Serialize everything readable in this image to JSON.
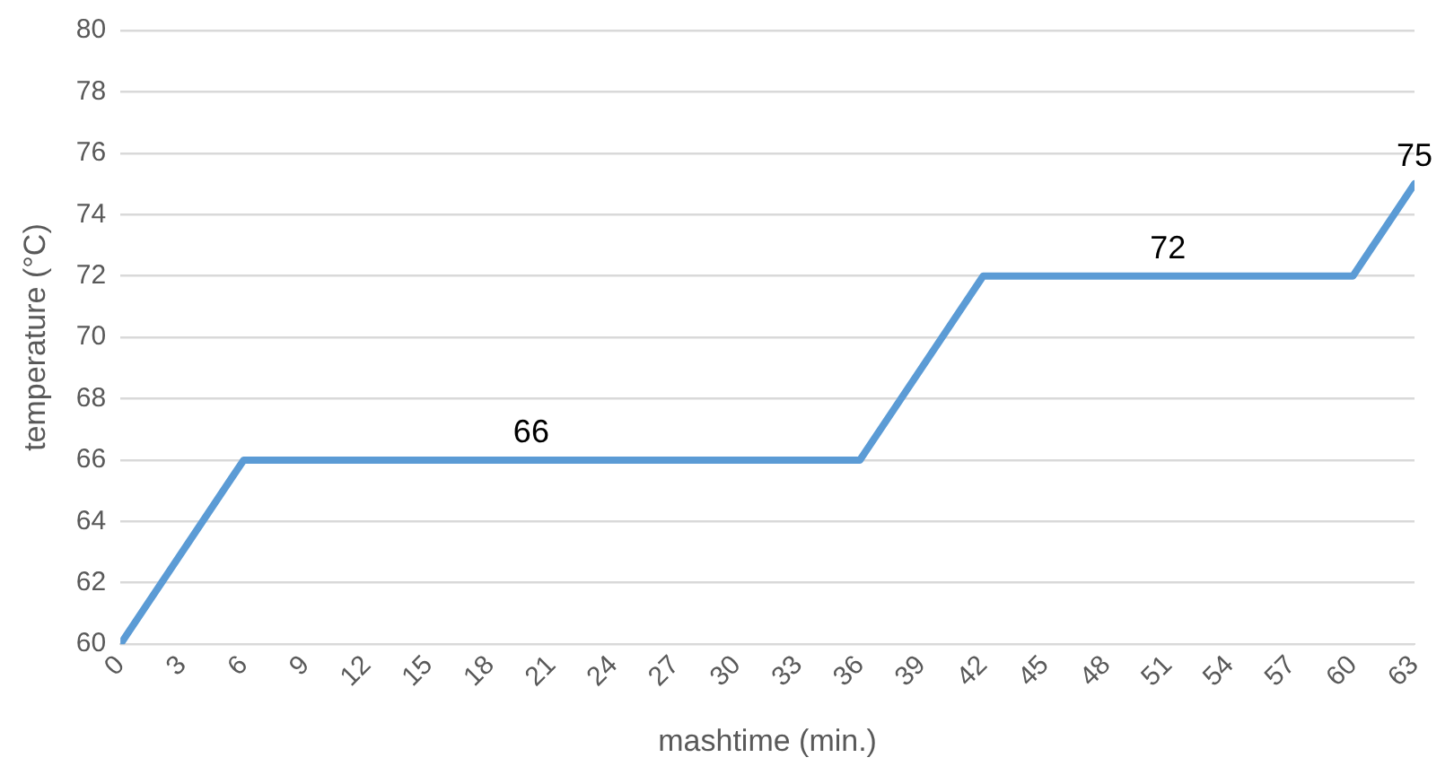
{
  "chart_data": {
    "type": "line",
    "xlabel": "mashtime (min.)",
    "ylabel": "temperature (°C)",
    "x": [
      0,
      6,
      36,
      42,
      60,
      63
    ],
    "series": [
      {
        "color": "#5b9bd5",
        "values": [
          60,
          66,
          66,
          72,
          72,
          75
        ]
      }
    ],
    "xlim": [
      0,
      63
    ],
    "xticks": [
      0,
      3,
      6,
      9,
      12,
      15,
      18,
      21,
      24,
      27,
      30,
      33,
      36,
      39,
      42,
      45,
      48,
      51,
      54,
      57,
      60,
      63
    ],
    "ylim": [
      60,
      80
    ],
    "yticks": [
      60,
      62,
      64,
      66,
      68,
      70,
      72,
      74,
      76,
      78,
      80
    ],
    "grid": "y",
    "legend": false,
    "marker": "none",
    "line_style": "solid",
    "annotations": [
      {
        "text": "66",
        "x": 20,
        "y": 66
      },
      {
        "text": "72",
        "x": 51,
        "y": 72
      },
      {
        "text": "75",
        "x": 63,
        "y": 75
      }
    ]
  }
}
